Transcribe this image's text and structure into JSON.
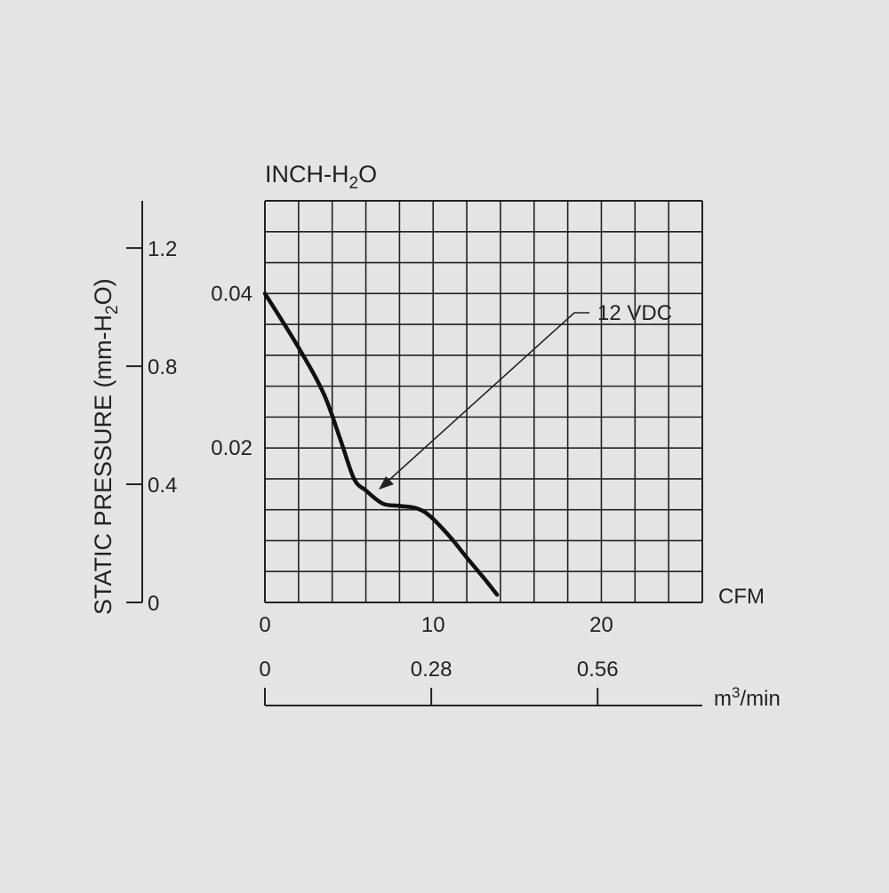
{
  "chart_data": {
    "type": "line",
    "top_unit_label": {
      "main": "INCH-H",
      "sub": "2",
      "tail": "O"
    },
    "y_axis_label": {
      "main": "STATIC PRESSURE (mm-H",
      "sub": "2",
      "tail": "O)"
    },
    "x_unit_cfm": "CFM",
    "x_unit_m3": {
      "main": "m",
      "sup": "3",
      "tail": "/min"
    },
    "x_range_cfm": [
      0,
      26
    ],
    "y_range_inch": [
      0,
      0.052
    ],
    "x_ticks_cfm": [
      "0",
      "10",
      "20"
    ],
    "x_ticks_m3": [
      "0",
      "0.28",
      "0.56"
    ],
    "y_ticks_inch": [
      "0.04",
      "0.02"
    ],
    "y_ticks_mm": [
      "1.2",
      "0.8",
      "0.4",
      "0"
    ],
    "grid": true,
    "series": [
      {
        "name": "12 VDC",
        "color": "#111111",
        "x": [
          0,
          2,
          3.5,
          4.5,
          5.3,
          6,
          7,
          8,
          9,
          9.8,
          11,
          12,
          13,
          13.8
        ],
        "y": [
          0.04,
          0.033,
          0.027,
          0.021,
          0.016,
          0.0145,
          0.0128,
          0.0125,
          0.0122,
          0.0112,
          0.0085,
          0.0058,
          0.0032,
          0.001
        ]
      }
    ],
    "annotation": {
      "text": "12 VDC"
    }
  }
}
